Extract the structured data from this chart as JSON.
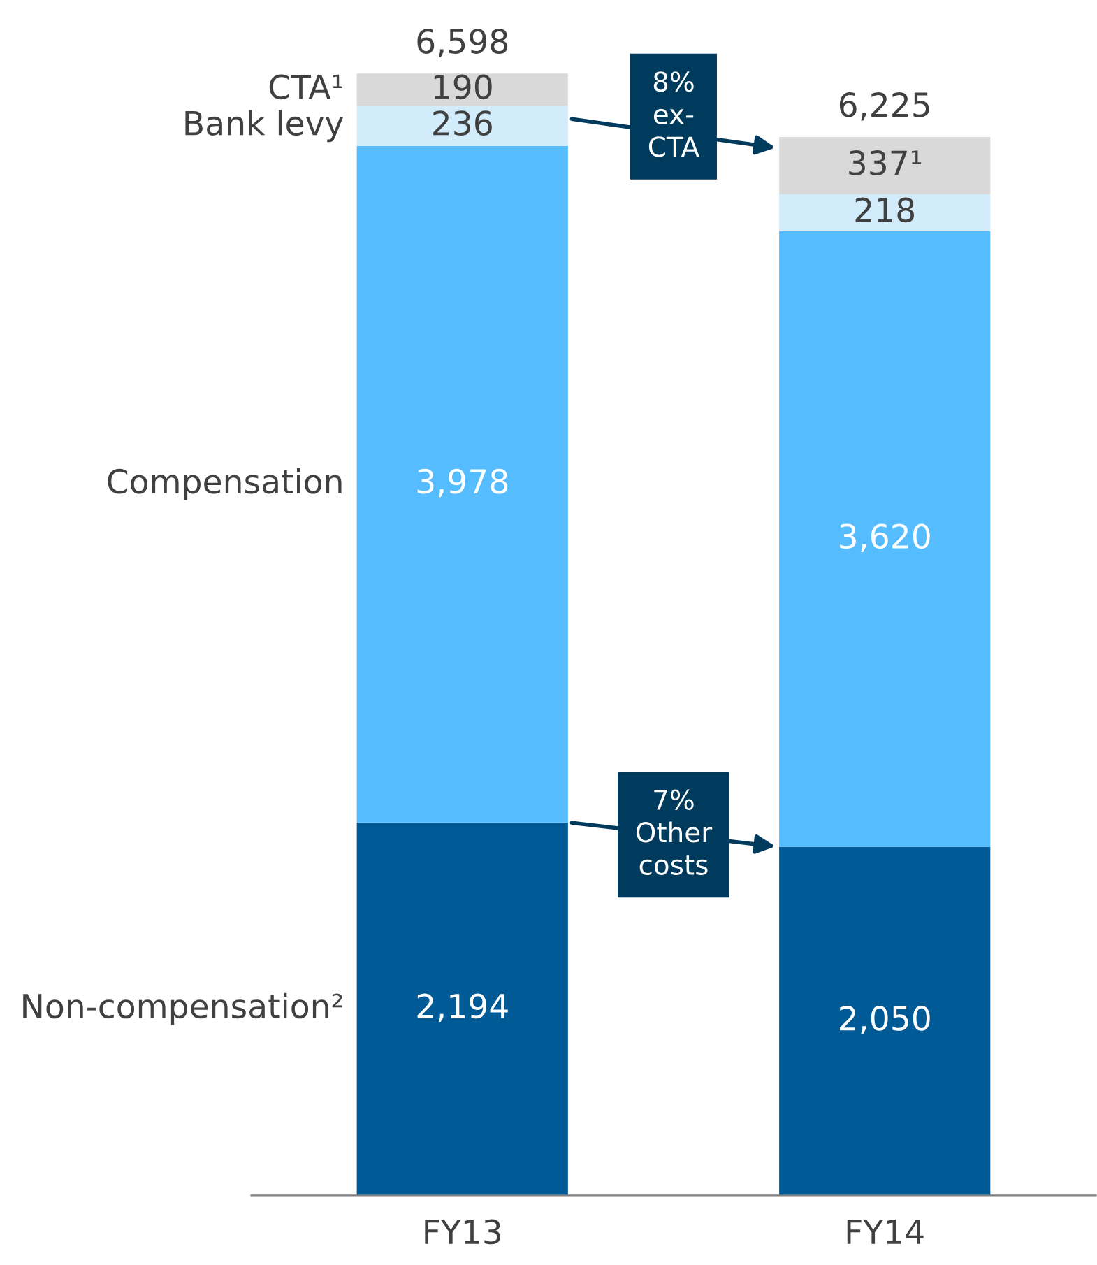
{
  "chart_data": {
    "type": "bar",
    "stacked": true,
    "categories": [
      "FY13",
      "FY14"
    ],
    "series": [
      {
        "name": "Non-compensation²",
        "color": "#005a96",
        "values": [
          2194,
          2050
        ],
        "value_labels": [
          "2,194",
          "2,050"
        ]
      },
      {
        "name": "Compensation",
        "color": "#55bcff",
        "values": [
          3978,
          3620
        ],
        "value_labels": [
          "3,978",
          "3,620"
        ]
      },
      {
        "name": "Bank levy",
        "color": "#d3ecfb",
        "values": [
          236,
          218
        ],
        "value_labels": [
          "236",
          "218"
        ]
      },
      {
        "name": "CTA¹",
        "color": "#d9d9d9",
        "values": [
          190,
          337
        ],
        "value_labels": [
          "190",
          "337¹"
        ]
      }
    ],
    "totals": [
      "6,598",
      "6,225"
    ],
    "annotations": [
      "8%\nex-\nCTA",
      "7%\nOther\ncosts"
    ],
    "grid": false,
    "legend": false,
    "tick_labels": "x"
  }
}
